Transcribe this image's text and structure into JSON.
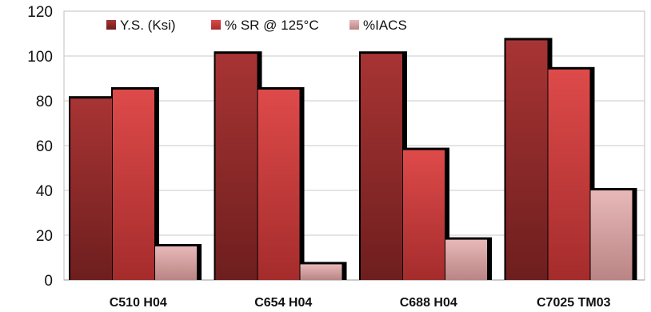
{
  "chart_data": {
    "type": "bar",
    "title": "",
    "xlabel": "",
    "ylabel": "",
    "categories": [
      "C510 H04",
      "C654 H04",
      "C688 H04",
      "C7025 TM03"
    ],
    "series": [
      {
        "name": "Y.S. (Ksi)",
        "values": [
          81,
          101,
          101,
          107
        ],
        "color": "#8e2a2a"
      },
      {
        "name": "% SR @ 125°C",
        "values": [
          85,
          85,
          58,
          94
        ],
        "color": "#c63a3a"
      },
      {
        "name": "%IACS",
        "values": [
          15,
          7,
          18,
          40
        ],
        "color": "#dca3a3"
      }
    ],
    "ylim": [
      0,
      120
    ],
    "yticks": [
      "0",
      "20",
      "40",
      "60",
      "80",
      "100",
      "120"
    ],
    "grid": true,
    "legend_position": "top-left"
  }
}
